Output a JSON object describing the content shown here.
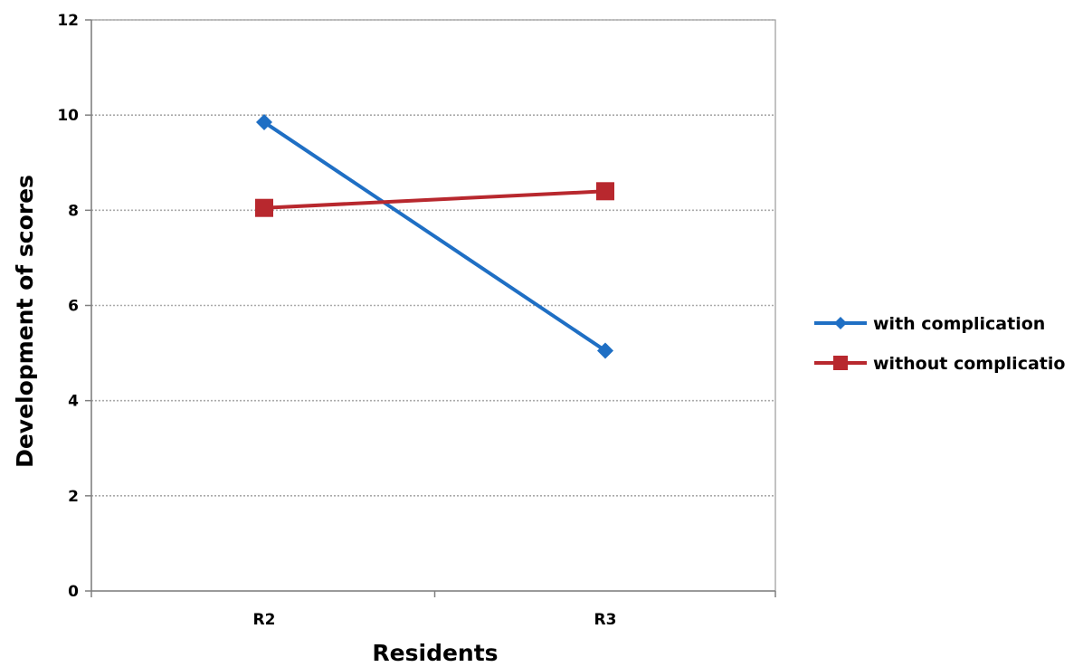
{
  "chart_data": {
    "type": "line",
    "xlabel": "Residents",
    "ylabel": "Development of scores",
    "categories": [
      "R2",
      "R3"
    ],
    "ylim": [
      0,
      12
    ],
    "yticks": [
      0,
      2,
      4,
      6,
      8,
      10,
      12
    ],
    "grid": true,
    "legend_position": "right",
    "series": [
      {
        "name": "with complication",
        "values": [
          9.85,
          5.05
        ],
        "color": "#1f6fc4",
        "marker": "diamond"
      },
      {
        "name": "without complicatio",
        "values": [
          8.05,
          8.4
        ],
        "color": "#b8282e",
        "marker": "square"
      }
    ]
  }
}
